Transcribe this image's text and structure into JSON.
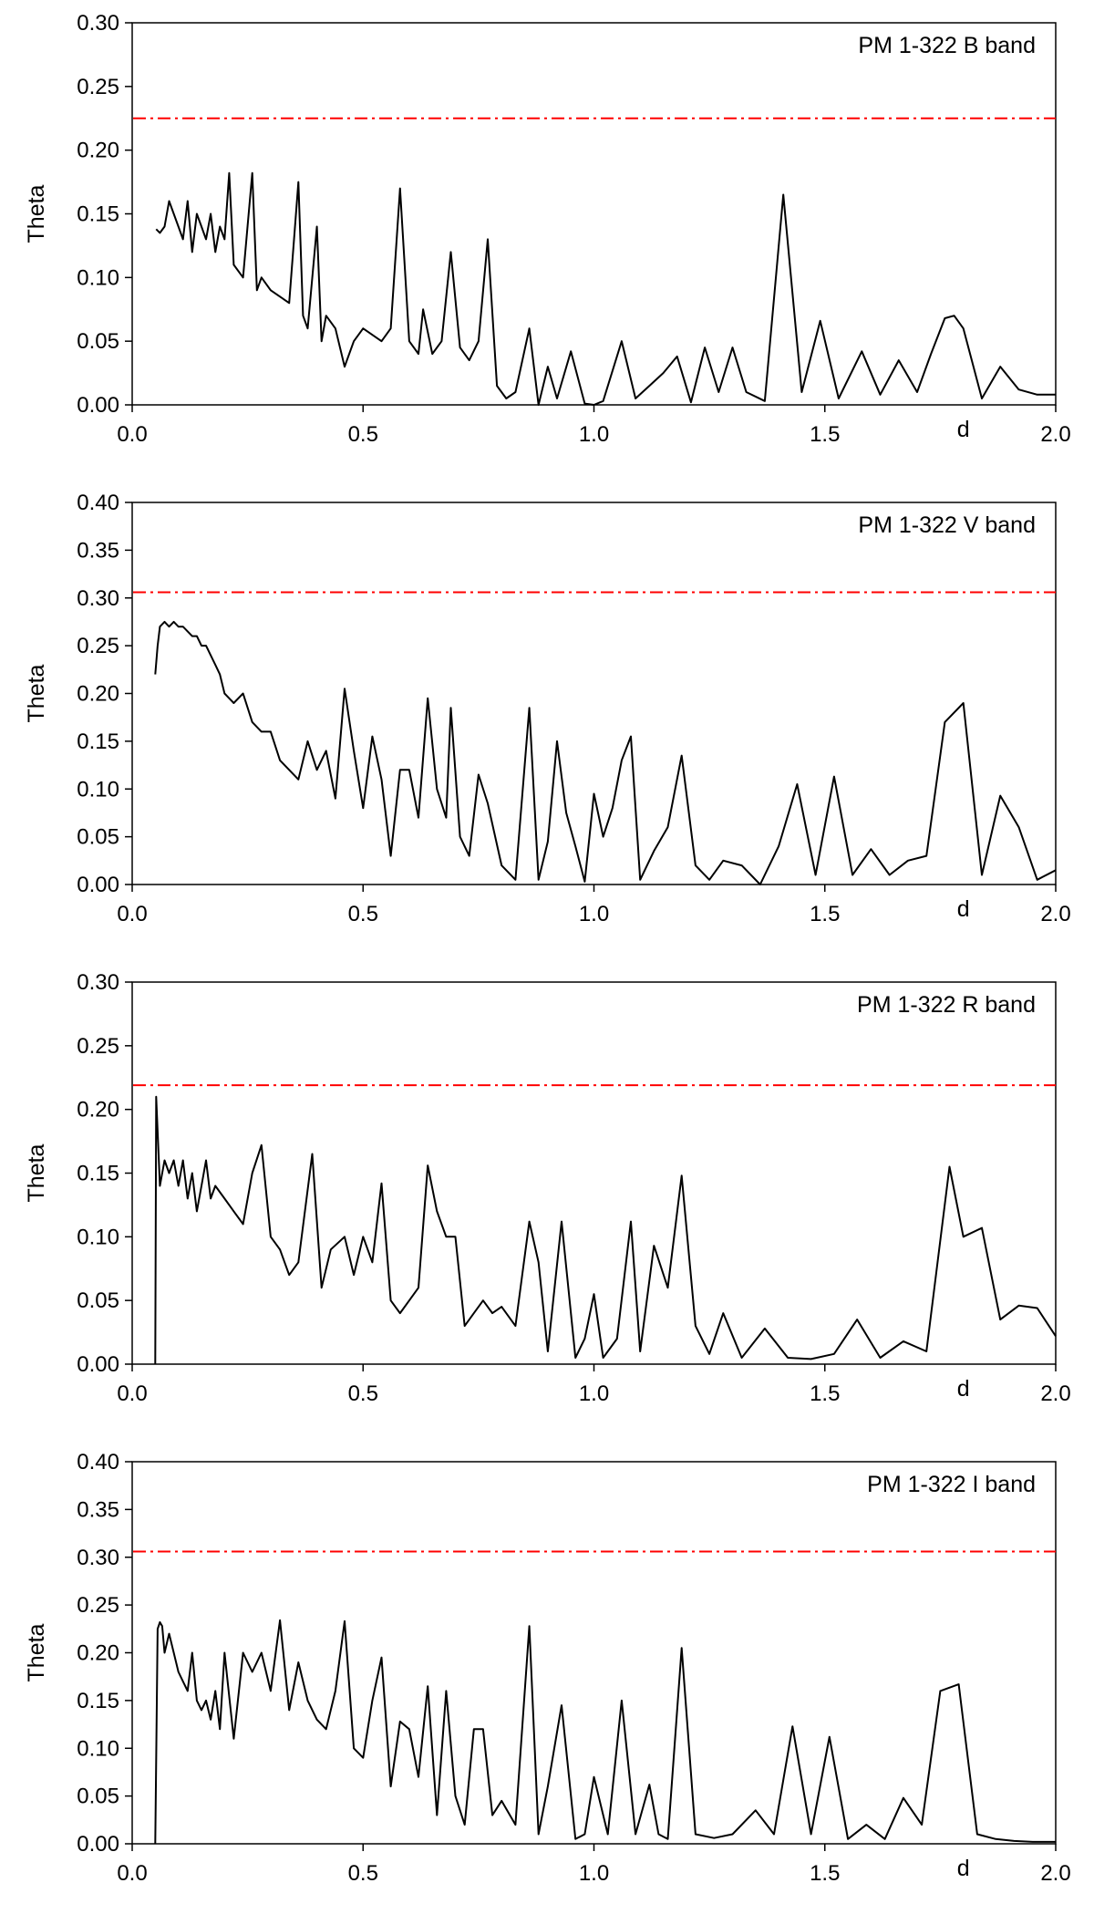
{
  "chart_data": [
    {
      "type": "line",
      "label": "PM 1-322 B band",
      "xlabel": "d",
      "ylabel": "Theta",
      "xlim": [
        0.0,
        2.0
      ],
      "ylim": [
        0.0,
        0.3
      ],
      "xticks": [
        "0.0",
        "0.5",
        "1.0",
        "1.5",
        "2.0"
      ],
      "yticks": [
        "0.00",
        "0.05",
        "0.10",
        "0.15",
        "0.20",
        "0.25",
        "0.30"
      ],
      "threshold": 0.225,
      "threshold_color": "#ff0000",
      "line_color": "#000000",
      "grid": false,
      "series": [
        {
          "x": [
            0.052,
            0.06,
            0.07,
            0.08,
            0.09,
            0.1,
            0.11,
            0.12,
            0.13,
            0.14,
            0.15,
            0.16,
            0.17,
            0.18,
            0.19,
            0.2,
            0.21,
            0.22,
            0.24,
            0.26,
            0.27,
            0.28,
            0.3,
            0.32,
            0.34,
            0.36,
            0.37,
            0.38,
            0.4,
            0.41,
            0.42,
            0.44,
            0.46,
            0.48,
            0.5,
            0.52,
            0.54,
            0.56,
            0.58,
            0.6,
            0.62,
            0.63,
            0.65,
            0.67,
            0.69,
            0.71,
            0.73,
            0.75,
            0.77,
            0.79,
            0.81,
            0.83,
            0.86,
            0.88,
            0.9,
            0.92,
            0.95,
            0.98,
            1.0,
            1.02,
            1.06,
            1.09,
            1.12,
            1.15,
            1.18,
            1.21,
            1.24,
            1.27,
            1.3,
            1.33,
            1.37,
            1.41,
            1.45,
            1.49,
            1.53,
            1.58,
            1.62,
            1.66,
            1.7,
            1.73,
            1.76,
            1.78,
            1.8,
            1.84,
            1.88,
            1.92,
            1.96,
            2.0
          ],
          "y": [
            0.138,
            0.135,
            0.14,
            0.16,
            0.15,
            0.14,
            0.13,
            0.16,
            0.12,
            0.15,
            0.14,
            0.13,
            0.15,
            0.12,
            0.14,
            0.13,
            0.182,
            0.11,
            0.1,
            0.182,
            0.09,
            0.1,
            0.09,
            0.085,
            0.08,
            0.175,
            0.07,
            0.06,
            0.14,
            0.05,
            0.07,
            0.06,
            0.03,
            0.05,
            0.06,
            0.055,
            0.05,
            0.06,
            0.17,
            0.05,
            0.04,
            0.075,
            0.04,
            0.05,
            0.12,
            0.045,
            0.035,
            0.05,
            0.13,
            0.015,
            0.005,
            0.01,
            0.06,
            0.0,
            0.03,
            0.005,
            0.042,
            0.001,
            0.0,
            0.003,
            0.05,
            0.005,
            0.015,
            0.025,
            0.038,
            0.002,
            0.045,
            0.01,
            0.045,
            0.01,
            0.003,
            0.165,
            0.01,
            0.066,
            0.005,
            0.042,
            0.008,
            0.035,
            0.01,
            0.04,
            0.068,
            0.07,
            0.06,
            0.005,
            0.03,
            0.012,
            0.008,
            0.008
          ]
        }
      ]
    },
    {
      "type": "line",
      "label": "PM 1-322 V band",
      "xlabel": "d",
      "ylabel": "Theta",
      "xlim": [
        0.0,
        2.0
      ],
      "ylim": [
        0.0,
        0.4
      ],
      "xticks": [
        "0.0",
        "0.5",
        "1.0",
        "1.5",
        "2.0"
      ],
      "yticks": [
        "0.00",
        "0.05",
        "0.10",
        "0.15",
        "0.20",
        "0.25",
        "0.30",
        "0.35",
        "0.40"
      ],
      "threshold": 0.306,
      "threshold_color": "#ff0000",
      "line_color": "#000000",
      "grid": false,
      "series": [
        {
          "x": [
            0.05,
            0.055,
            0.06,
            0.07,
            0.08,
            0.09,
            0.1,
            0.11,
            0.12,
            0.13,
            0.14,
            0.15,
            0.16,
            0.17,
            0.18,
            0.19,
            0.2,
            0.22,
            0.24,
            0.26,
            0.28,
            0.3,
            0.32,
            0.34,
            0.36,
            0.38,
            0.4,
            0.42,
            0.44,
            0.46,
            0.48,
            0.5,
            0.52,
            0.54,
            0.56,
            0.58,
            0.6,
            0.62,
            0.64,
            0.66,
            0.68,
            0.69,
            0.71,
            0.73,
            0.75,
            0.77,
            0.8,
            0.83,
            0.86,
            0.88,
            0.9,
            0.92,
            0.94,
            0.96,
            0.98,
            1.0,
            1.02,
            1.04,
            1.06,
            1.08,
            1.1,
            1.13,
            1.16,
            1.19,
            1.22,
            1.25,
            1.28,
            1.32,
            1.36,
            1.4,
            1.44,
            1.48,
            1.52,
            1.56,
            1.6,
            1.64,
            1.68,
            1.72,
            1.76,
            1.8,
            1.84,
            1.88,
            1.92,
            1.96,
            2.0
          ],
          "y": [
            0.22,
            0.25,
            0.27,
            0.275,
            0.27,
            0.275,
            0.27,
            0.27,
            0.265,
            0.26,
            0.26,
            0.25,
            0.25,
            0.24,
            0.23,
            0.22,
            0.2,
            0.19,
            0.2,
            0.17,
            0.16,
            0.16,
            0.13,
            0.12,
            0.11,
            0.15,
            0.12,
            0.14,
            0.09,
            0.205,
            0.14,
            0.08,
            0.155,
            0.11,
            0.03,
            0.12,
            0.12,
            0.07,
            0.195,
            0.1,
            0.07,
            0.185,
            0.05,
            0.03,
            0.115,
            0.085,
            0.02,
            0.005,
            0.185,
            0.005,
            0.045,
            0.15,
            0.075,
            0.04,
            0.003,
            0.095,
            0.05,
            0.08,
            0.13,
            0.155,
            0.005,
            0.035,
            0.06,
            0.135,
            0.02,
            0.005,
            0.025,
            0.02,
            0.0,
            0.04,
            0.105,
            0.01,
            0.113,
            0.01,
            0.037,
            0.01,
            0.025,
            0.03,
            0.17,
            0.19,
            0.01,
            0.093,
            0.06,
            0.005,
            0.015
          ]
        }
      ]
    },
    {
      "type": "line",
      "label": "PM 1-322 R band",
      "xlabel": "d",
      "ylabel": "Theta",
      "xlim": [
        0.0,
        2.0
      ],
      "ylim": [
        0.0,
        0.3
      ],
      "xticks": [
        "0.0",
        "0.5",
        "1.0",
        "1.5",
        "2.0"
      ],
      "yticks": [
        "0.00",
        "0.05",
        "0.10",
        "0.15",
        "0.20",
        "0.25",
        "0.30"
      ],
      "threshold": 0.219,
      "threshold_color": "#ff0000",
      "line_color": "#000000",
      "grid": false,
      "series": [
        {
          "x": [
            0.05,
            0.052,
            0.06,
            0.07,
            0.08,
            0.09,
            0.1,
            0.11,
            0.12,
            0.13,
            0.14,
            0.15,
            0.16,
            0.17,
            0.18,
            0.2,
            0.22,
            0.24,
            0.26,
            0.28,
            0.3,
            0.32,
            0.34,
            0.36,
            0.39,
            0.41,
            0.43,
            0.46,
            0.48,
            0.5,
            0.52,
            0.54,
            0.56,
            0.58,
            0.6,
            0.62,
            0.64,
            0.66,
            0.68,
            0.7,
            0.72,
            0.74,
            0.76,
            0.78,
            0.8,
            0.83,
            0.86,
            0.88,
            0.9,
            0.93,
            0.96,
            0.98,
            1.0,
            1.02,
            1.05,
            1.08,
            1.1,
            1.13,
            1.16,
            1.19,
            1.22,
            1.25,
            1.28,
            1.32,
            1.37,
            1.42,
            1.47,
            1.52,
            1.57,
            1.62,
            1.67,
            1.72,
            1.77,
            1.8,
            1.84,
            1.88,
            1.92,
            1.96,
            2.0
          ],
          "y": [
            0.0,
            0.21,
            0.14,
            0.16,
            0.15,
            0.16,
            0.14,
            0.16,
            0.13,
            0.15,
            0.12,
            0.14,
            0.16,
            0.13,
            0.14,
            0.13,
            0.12,
            0.11,
            0.15,
            0.172,
            0.1,
            0.09,
            0.07,
            0.08,
            0.165,
            0.06,
            0.09,
            0.1,
            0.07,
            0.1,
            0.08,
            0.142,
            0.05,
            0.04,
            0.05,
            0.06,
            0.156,
            0.12,
            0.1,
            0.1,
            0.03,
            0.04,
            0.05,
            0.04,
            0.045,
            0.03,
            0.112,
            0.08,
            0.01,
            0.112,
            0.005,
            0.02,
            0.055,
            0.005,
            0.02,
            0.112,
            0.01,
            0.093,
            0.06,
            0.148,
            0.03,
            0.008,
            0.04,
            0.005,
            0.028,
            0.005,
            0.004,
            0.008,
            0.035,
            0.005,
            0.018,
            0.01,
            0.155,
            0.1,
            0.107,
            0.035,
            0.046,
            0.044,
            0.022
          ]
        }
      ]
    },
    {
      "type": "line",
      "label": "PM 1-322 I band",
      "xlabel": "d",
      "ylabel": "Theta",
      "xlim": [
        0.0,
        2.0
      ],
      "ylim": [
        0.0,
        0.4
      ],
      "xticks": [
        "0.0",
        "0.5",
        "1.0",
        "1.5",
        "2.0"
      ],
      "yticks": [
        "0.00",
        "0.05",
        "0.10",
        "0.15",
        "0.20",
        "0.25",
        "0.30",
        "0.35",
        "0.40"
      ],
      "threshold": 0.306,
      "threshold_color": "#ff0000",
      "line_color": "#000000",
      "grid": false,
      "series": [
        {
          "x": [
            0.05,
            0.055,
            0.06,
            0.065,
            0.07,
            0.08,
            0.09,
            0.1,
            0.11,
            0.12,
            0.13,
            0.14,
            0.15,
            0.16,
            0.17,
            0.18,
            0.19,
            0.2,
            0.22,
            0.24,
            0.26,
            0.28,
            0.3,
            0.32,
            0.34,
            0.36,
            0.38,
            0.4,
            0.42,
            0.44,
            0.46,
            0.48,
            0.5,
            0.52,
            0.54,
            0.56,
            0.58,
            0.6,
            0.62,
            0.64,
            0.66,
            0.68,
            0.7,
            0.72,
            0.74,
            0.76,
            0.78,
            0.8,
            0.83,
            0.86,
            0.88,
            0.9,
            0.93,
            0.96,
            0.98,
            1.0,
            1.03,
            1.06,
            1.09,
            1.12,
            1.14,
            1.16,
            1.19,
            1.22,
            1.26,
            1.3,
            1.35,
            1.39,
            1.43,
            1.47,
            1.51,
            1.55,
            1.59,
            1.63,
            1.67,
            1.71,
            1.75,
            1.79,
            1.83,
            1.87,
            1.91,
            1.95,
            2.0
          ],
          "y": [
            0.0,
            0.225,
            0.232,
            0.228,
            0.2,
            0.22,
            0.2,
            0.18,
            0.17,
            0.16,
            0.2,
            0.15,
            0.14,
            0.15,
            0.13,
            0.16,
            0.12,
            0.2,
            0.11,
            0.2,
            0.18,
            0.2,
            0.16,
            0.234,
            0.14,
            0.19,
            0.15,
            0.13,
            0.12,
            0.16,
            0.233,
            0.1,
            0.09,
            0.15,
            0.195,
            0.06,
            0.128,
            0.12,
            0.07,
            0.165,
            0.03,
            0.16,
            0.05,
            0.02,
            0.12,
            0.12,
            0.03,
            0.045,
            0.02,
            0.228,
            0.01,
            0.06,
            0.145,
            0.005,
            0.01,
            0.07,
            0.01,
            0.15,
            0.01,
            0.062,
            0.01,
            0.005,
            0.205,
            0.01,
            0.006,
            0.01,
            0.035,
            0.01,
            0.123,
            0.01,
            0.112,
            0.005,
            0.02,
            0.005,
            0.048,
            0.02,
            0.16,
            0.167,
            0.01,
            0.005,
            0.003,
            0.002,
            0.002
          ]
        }
      ]
    }
  ]
}
